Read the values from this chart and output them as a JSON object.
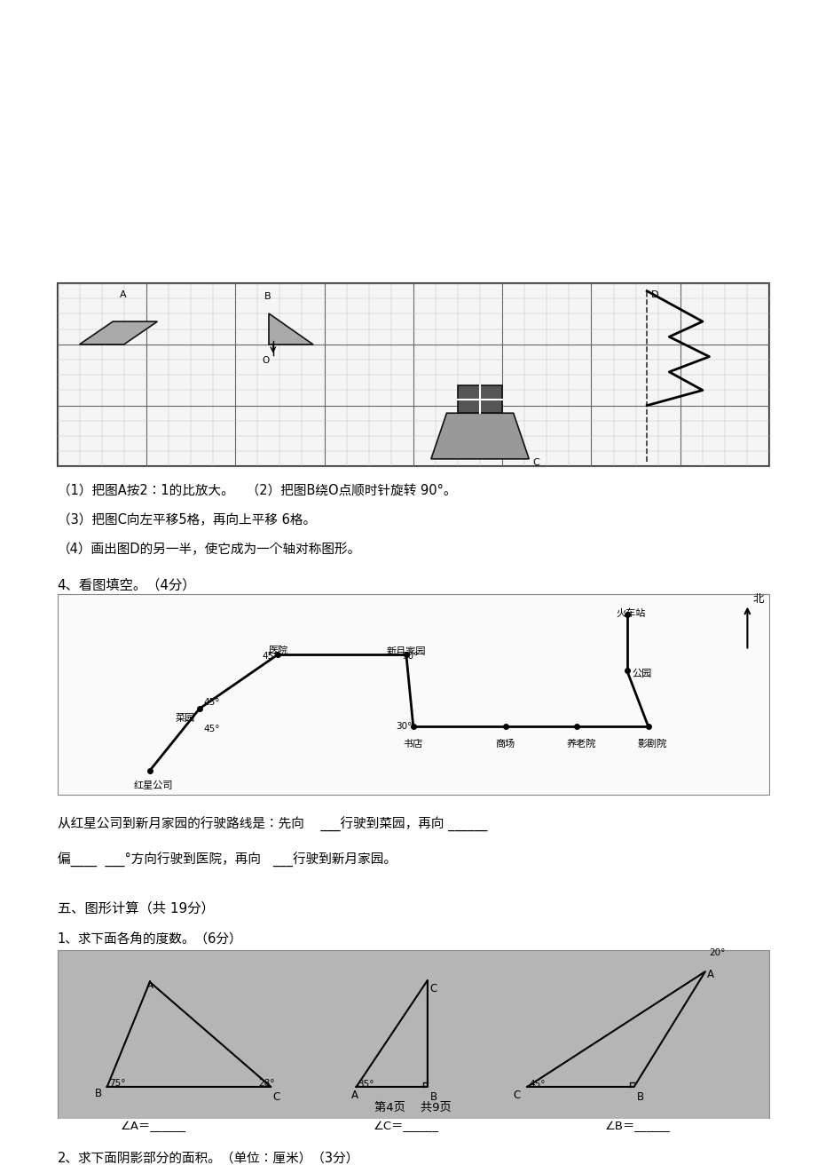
{
  "page_bg": "#ffffff",
  "page_width": 9.2,
  "page_height": 13.03,
  "section3_title": "（1）把图A按2：1的比放大。   （2）把图B绕O点顺时针旋转 90°。",
  "section3_line2": "（3）把图C向左平移5格，再向上平移 6格。",
  "section3_line3": "（4）画出图D的另一半，使它成为一个轴对称图形。",
  "section4_title": "4、看图填空。（4分）",
  "section5_title": "五、图形计算（共 19分）",
  "section5_sub1": "1、求下面各角的度数。（6分）",
  "section5_sub2": "2、求下面阴影部分的面积。（单位：厘米）（3分）",
  "page_footer": "第4页    共9页"
}
